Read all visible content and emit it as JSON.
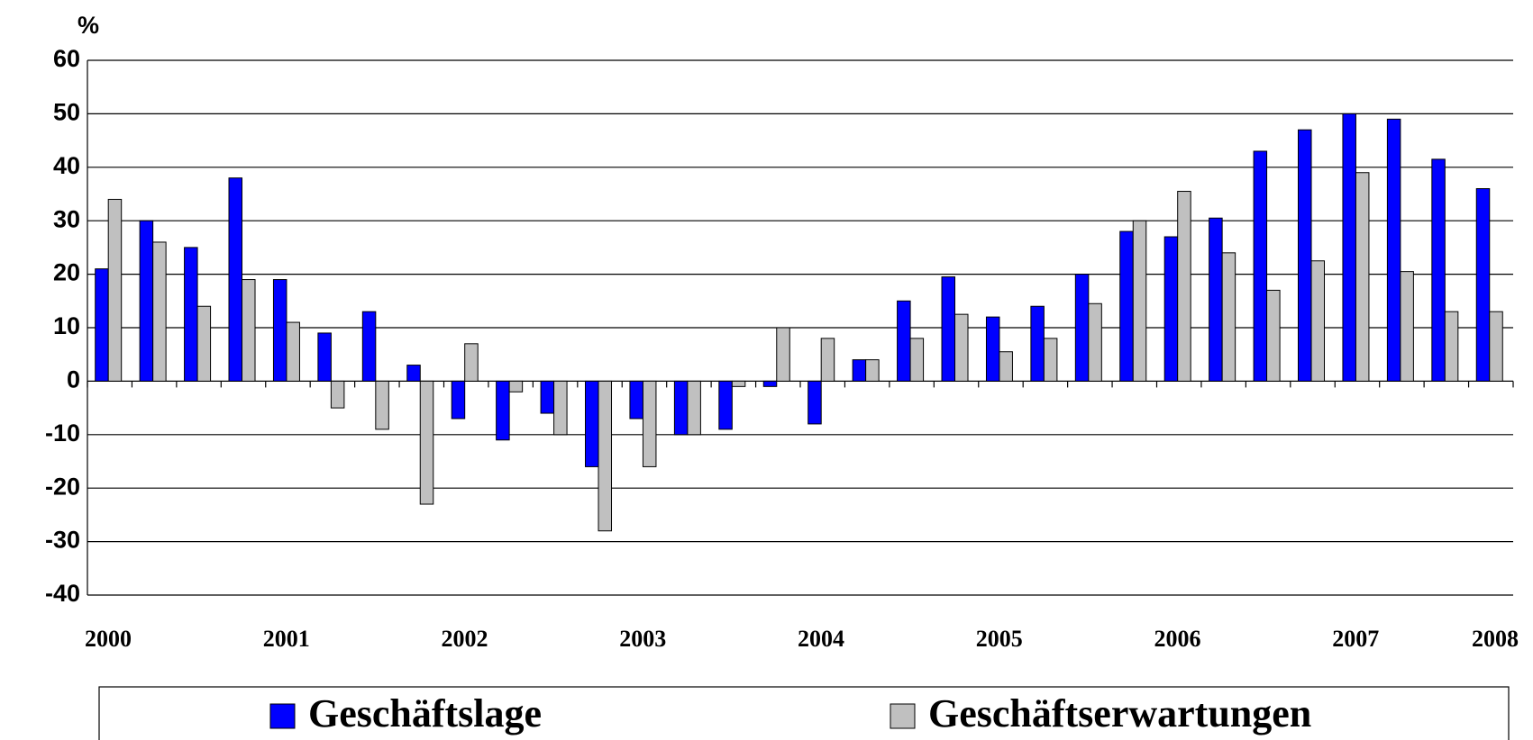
{
  "chart_data": {
    "type": "bar",
    "y_label": "%",
    "categories": [
      "2000",
      null,
      null,
      null,
      "2001",
      null,
      null,
      null,
      "2002",
      null,
      null,
      null,
      "2003",
      null,
      null,
      null,
      "2004",
      null,
      null,
      null,
      "2005",
      null,
      null,
      null,
      "2006",
      null,
      null,
      null,
      "2007",
      null,
      null,
      null
    ],
    "end_label": "2008",
    "end_label_color": "#ff3300",
    "series": [
      {
        "name": "Geschäftslage",
        "color": "#0000ff",
        "values": [
          21,
          30,
          25,
          38,
          19,
          9,
          13,
          3,
          -7,
          -11,
          -6,
          -16,
          -7,
          -10,
          -9,
          -1,
          -8,
          4,
          15,
          19.5,
          12,
          14,
          20,
          28,
          27,
          30.5,
          43,
          47,
          50,
          49,
          41.5,
          36
        ]
      },
      {
        "name": "Geschäftserwartungen",
        "color": "#c0c0c0",
        "values": [
          34,
          26,
          14,
          19,
          11,
          -5,
          -9,
          -23,
          7,
          -2,
          -10,
          -28,
          -16,
          -10,
          -1,
          10,
          8,
          4,
          8,
          12.5,
          5.5,
          8,
          14.5,
          30,
          35.5,
          24,
          17,
          22.5,
          39,
          20.5,
          13,
          13
        ]
      }
    ],
    "ylim": [
      -40,
      60
    ],
    "yticks": [
      -40,
      -30,
      -20,
      -10,
      0,
      10,
      20,
      30,
      40,
      50,
      60
    ],
    "grid": true,
    "legend": "bottom"
  }
}
